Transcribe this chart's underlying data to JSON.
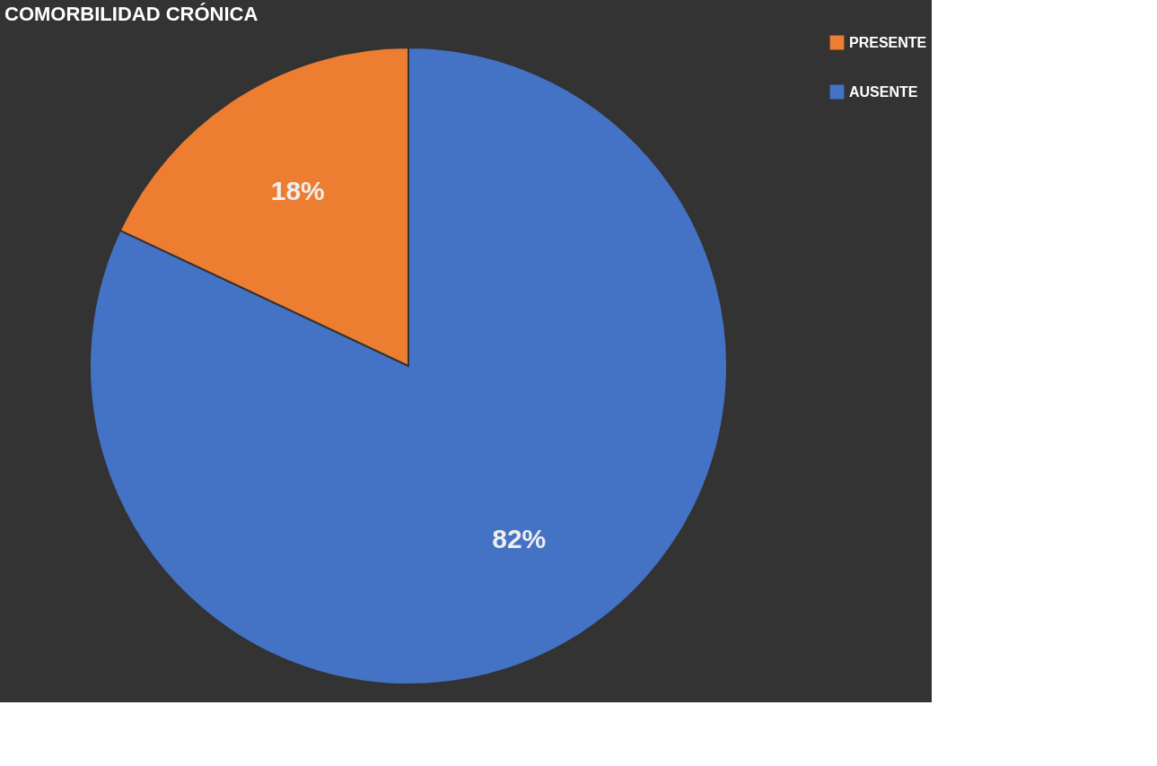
{
  "chart_data": {
    "type": "pie",
    "title": "COMORBILIDAD CRÓNICA",
    "categories": [
      "PRESENTE",
      "AUSENTE"
    ],
    "values": [
      18,
      82
    ],
    "colors": [
      "#ed7d31",
      "#4472c4"
    ],
    "data_labels": true,
    "value_labels": [
      "18%",
      "82%"
    ],
    "legend": "right"
  }
}
